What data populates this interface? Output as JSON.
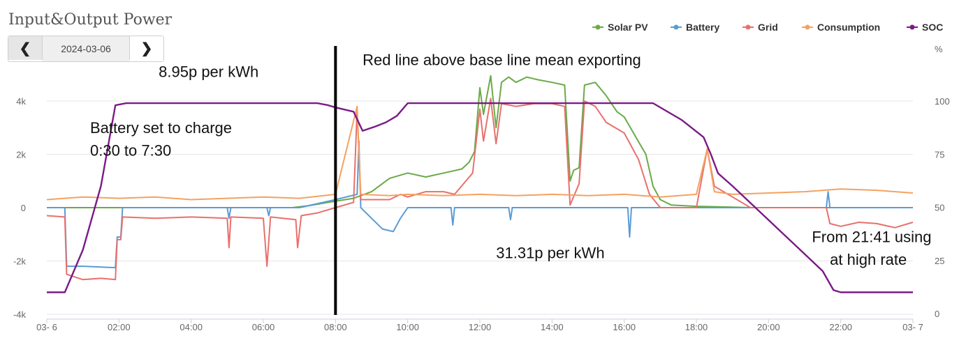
{
  "title": "Input&Output Power",
  "date_nav": {
    "date": "2024-03-06",
    "prev_icon": "chevron-left-icon",
    "next_icon": "chevron-right-icon"
  },
  "chart_data": {
    "type": "line",
    "x_tick_labels": [
      "03- 6",
      "02:00",
      "04:00",
      "06:00",
      "08:00",
      "10:00",
      "12:00",
      "14:00",
      "16:00",
      "18:00",
      "20:00",
      "22:00",
      "03- 7"
    ],
    "x_tick_hours": [
      0,
      2,
      4,
      6,
      8,
      10,
      12,
      14,
      16,
      18,
      20,
      22,
      24
    ],
    "xlim": [
      0,
      24
    ],
    "y_left": {
      "ticks": [
        "-4k",
        "-2k",
        "0",
        "2k",
        "4k"
      ],
      "values": [
        -4000,
        -2000,
        0,
        2000,
        4000
      ],
      "lim": [
        -4000,
        4000
      ]
    },
    "y_right": {
      "unit": "%",
      "ticks": [
        "0",
        "25",
        "50",
        "75",
        "100"
      ],
      "values": [
        0,
        25,
        50,
        75,
        100
      ],
      "lim": [
        0,
        100
      ]
    },
    "grid": true,
    "legend_position": "top-right",
    "series": [
      {
        "name": "Solar PV",
        "color": "#6aaa47",
        "axis": "left",
        "points": [
          [
            0,
            0
          ],
          [
            6.8,
            0
          ],
          [
            7.3,
            80
          ],
          [
            7.8,
            200
          ],
          [
            8.5,
            350
          ],
          [
            9,
            600
          ],
          [
            9.5,
            1100
          ],
          [
            10,
            1300
          ],
          [
            10.5,
            1150
          ],
          [
            11,
            1300
          ],
          [
            11.5,
            1450
          ],
          [
            11.7,
            1700
          ],
          [
            11.85,
            2100
          ],
          [
            12,
            4500
          ],
          [
            12.1,
            3500
          ],
          [
            12.3,
            4950
          ],
          [
            12.45,
            3000
          ],
          [
            12.6,
            4700
          ],
          [
            12.8,
            4900
          ],
          [
            13,
            4700
          ],
          [
            13.3,
            4900
          ],
          [
            13.6,
            4800
          ],
          [
            14,
            4700
          ],
          [
            14.35,
            4600
          ],
          [
            14.5,
            1000
          ],
          [
            14.6,
            1400
          ],
          [
            14.75,
            1500
          ],
          [
            14.9,
            4600
          ],
          [
            15.2,
            4700
          ],
          [
            15.5,
            4200
          ],
          [
            15.8,
            3600
          ],
          [
            16,
            3400
          ],
          [
            16.3,
            2700
          ],
          [
            16.6,
            2000
          ],
          [
            16.8,
            800
          ],
          [
            17,
            300
          ],
          [
            17.3,
            100
          ],
          [
            18,
            50
          ],
          [
            19,
            20
          ],
          [
            19.5,
            0
          ],
          [
            24,
            0
          ]
        ]
      },
      {
        "name": "Battery",
        "color": "#5b9bd5",
        "axis": "left",
        "points": [
          [
            0,
            0
          ],
          [
            0.5,
            0
          ],
          [
            0.55,
            -2200
          ],
          [
            1,
            -2200
          ],
          [
            1.9,
            -2250
          ],
          [
            1.95,
            -1100
          ],
          [
            2.05,
            -1100
          ],
          [
            2.1,
            0
          ],
          [
            5,
            0
          ],
          [
            5.05,
            -400
          ],
          [
            5.1,
            0
          ],
          [
            6.1,
            0
          ],
          [
            6.15,
            -300
          ],
          [
            6.2,
            0
          ],
          [
            7,
            0
          ],
          [
            8,
            300
          ],
          [
            8.6,
            500
          ],
          [
            8.65,
            2500
          ],
          [
            8.7,
            0
          ],
          [
            9,
            -400
          ],
          [
            9.3,
            -800
          ],
          [
            9.6,
            -900
          ],
          [
            9.8,
            -400
          ],
          [
            10,
            0
          ],
          [
            11.2,
            0
          ],
          [
            11.25,
            -650
          ],
          [
            11.3,
            0
          ],
          [
            12.8,
            0
          ],
          [
            12.85,
            -450
          ],
          [
            12.9,
            0
          ],
          [
            16.1,
            0
          ],
          [
            16.15,
            -1100
          ],
          [
            16.2,
            0
          ],
          [
            21.6,
            0
          ],
          [
            21.65,
            600
          ],
          [
            21.7,
            0
          ],
          [
            24,
            0
          ]
        ]
      },
      {
        "name": "Grid",
        "color": "#e8706c",
        "axis": "left",
        "points": [
          [
            0,
            -300
          ],
          [
            0.5,
            -350
          ],
          [
            0.55,
            -2500
          ],
          [
            1,
            -2700
          ],
          [
            1.5,
            -2650
          ],
          [
            1.9,
            -2700
          ],
          [
            1.95,
            -1200
          ],
          [
            2.05,
            -1200
          ],
          [
            2.1,
            -350
          ],
          [
            3,
            -400
          ],
          [
            4,
            -350
          ],
          [
            5,
            -400
          ],
          [
            5.05,
            -1500
          ],
          [
            5.1,
            -350
          ],
          [
            6,
            -400
          ],
          [
            6.1,
            -2200
          ],
          [
            6.2,
            -350
          ],
          [
            6.9,
            -450
          ],
          [
            6.95,
            -1500
          ],
          [
            7.05,
            -300
          ],
          [
            7.5,
            -200
          ],
          [
            8,
            0
          ],
          [
            8.5,
            200
          ],
          [
            8.6,
            3700
          ],
          [
            8.7,
            300
          ],
          [
            9.5,
            300
          ],
          [
            9.8,
            500
          ],
          [
            10,
            400
          ],
          [
            10.5,
            600
          ],
          [
            11,
            600
          ],
          [
            11.3,
            500
          ],
          [
            11.8,
            1300
          ],
          [
            12,
            3700
          ],
          [
            12.1,
            2500
          ],
          [
            12.3,
            4100
          ],
          [
            12.45,
            2400
          ],
          [
            12.6,
            3900
          ],
          [
            13,
            3800
          ],
          [
            13.5,
            3900
          ],
          [
            14,
            3900
          ],
          [
            14.35,
            3800
          ],
          [
            14.5,
            100
          ],
          [
            14.75,
            900
          ],
          [
            14.9,
            4000
          ],
          [
            15.2,
            3800
          ],
          [
            15.5,
            3200
          ],
          [
            16,
            2800
          ],
          [
            16.4,
            1800
          ],
          [
            16.7,
            500
          ],
          [
            17,
            0
          ],
          [
            18,
            0
          ],
          [
            18.3,
            2200
          ],
          [
            18.5,
            800
          ],
          [
            19,
            400
          ],
          [
            19.5,
            0
          ],
          [
            21.6,
            0
          ],
          [
            21.7,
            -600
          ],
          [
            22,
            -700
          ],
          [
            22.5,
            -550
          ],
          [
            23,
            -600
          ],
          [
            23.5,
            -750
          ],
          [
            24,
            -550
          ]
        ]
      },
      {
        "name": "Consumption",
        "color": "#f4a261",
        "axis": "left",
        "points": [
          [
            0,
            300
          ],
          [
            1,
            400
          ],
          [
            2,
            350
          ],
          [
            3,
            400
          ],
          [
            4,
            300
          ],
          [
            5,
            350
          ],
          [
            6,
            400
          ],
          [
            7,
            350
          ],
          [
            8,
            500
          ],
          [
            8.6,
            3800
          ],
          [
            8.7,
            500
          ],
          [
            9.5,
            450
          ],
          [
            10,
            500
          ],
          [
            11,
            450
          ],
          [
            12,
            500
          ],
          [
            13,
            450
          ],
          [
            14,
            500
          ],
          [
            15,
            450
          ],
          [
            16,
            500
          ],
          [
            17,
            400
          ],
          [
            18,
            500
          ],
          [
            18.3,
            2200
          ],
          [
            18.5,
            600
          ],
          [
            19,
            500
          ],
          [
            20,
            550
          ],
          [
            21,
            600
          ],
          [
            22,
            700
          ],
          [
            23,
            650
          ],
          [
            24,
            550
          ]
        ]
      },
      {
        "name": "SOC",
        "color": "#7b1a86",
        "axis": "right",
        "points": [
          [
            0,
            10
          ],
          [
            0.5,
            10
          ],
          [
            1,
            30
          ],
          [
            1.5,
            60
          ],
          [
            1.9,
            98
          ],
          [
            2.2,
            99
          ],
          [
            7.5,
            99
          ],
          [
            7.8,
            98
          ],
          [
            8,
            97
          ],
          [
            8.5,
            95
          ],
          [
            8.75,
            86
          ],
          [
            9.1,
            88
          ],
          [
            9.4,
            90
          ],
          [
            9.7,
            93
          ],
          [
            10,
            99
          ],
          [
            13,
            99
          ],
          [
            16.8,
            99
          ],
          [
            17.6,
            91
          ],
          [
            18.2,
            83
          ],
          [
            18.4,
            75
          ],
          [
            18.6,
            66
          ],
          [
            19,
            60
          ],
          [
            19.5,
            52
          ],
          [
            20,
            44
          ],
          [
            20.5,
            36
          ],
          [
            21,
            28
          ],
          [
            21.5,
            20
          ],
          [
            21.8,
            11
          ],
          [
            22,
            10
          ],
          [
            24,
            10
          ]
        ]
      }
    ],
    "annotations": [
      {
        "text": "8.95p per kWh",
        "x_hour": 3.1,
        "y_value": 4900
      },
      {
        "text": "Battery set to charge",
        "x_hour": 1.2,
        "y_value": 2800
      },
      {
        "text": "0:30 to 7:30",
        "x_hour": 1.2,
        "y_value": 1950
      },
      {
        "text": "Red line above base line mean exporting",
        "x_hour": 8.75,
        "y_value": 5350
      },
      {
        "text": "31.31p per kWh",
        "x_hour": 12.45,
        "y_value": -1900
      },
      {
        "text": "From 21:41 using",
        "x_hour": 21.2,
        "y_value": -1300
      },
      {
        "text": "at high rate",
        "x_hour": 21.7,
        "y_value": -2150
      }
    ],
    "marker_line_hour": 8
  }
}
